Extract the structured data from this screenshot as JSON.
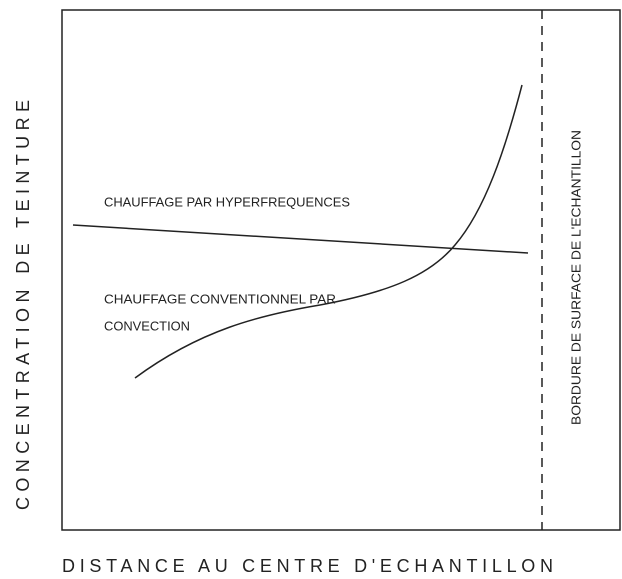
{
  "labels": {
    "y_axis": "CONCENTRATION DE TEINTURE",
    "x_axis": "DISTANCE AU CENTRE D'ECHANTILLON",
    "microwave": "CHAUFFAGE PAR HYPERFREQUENCES",
    "conventional_line1": "CHAUFFAGE CONVENTIONNEL PAR",
    "conventional_line2": "CONVECTION",
    "surface": "BORDURE DE SURFACE DE L'ECHANTILLON"
  }
}
